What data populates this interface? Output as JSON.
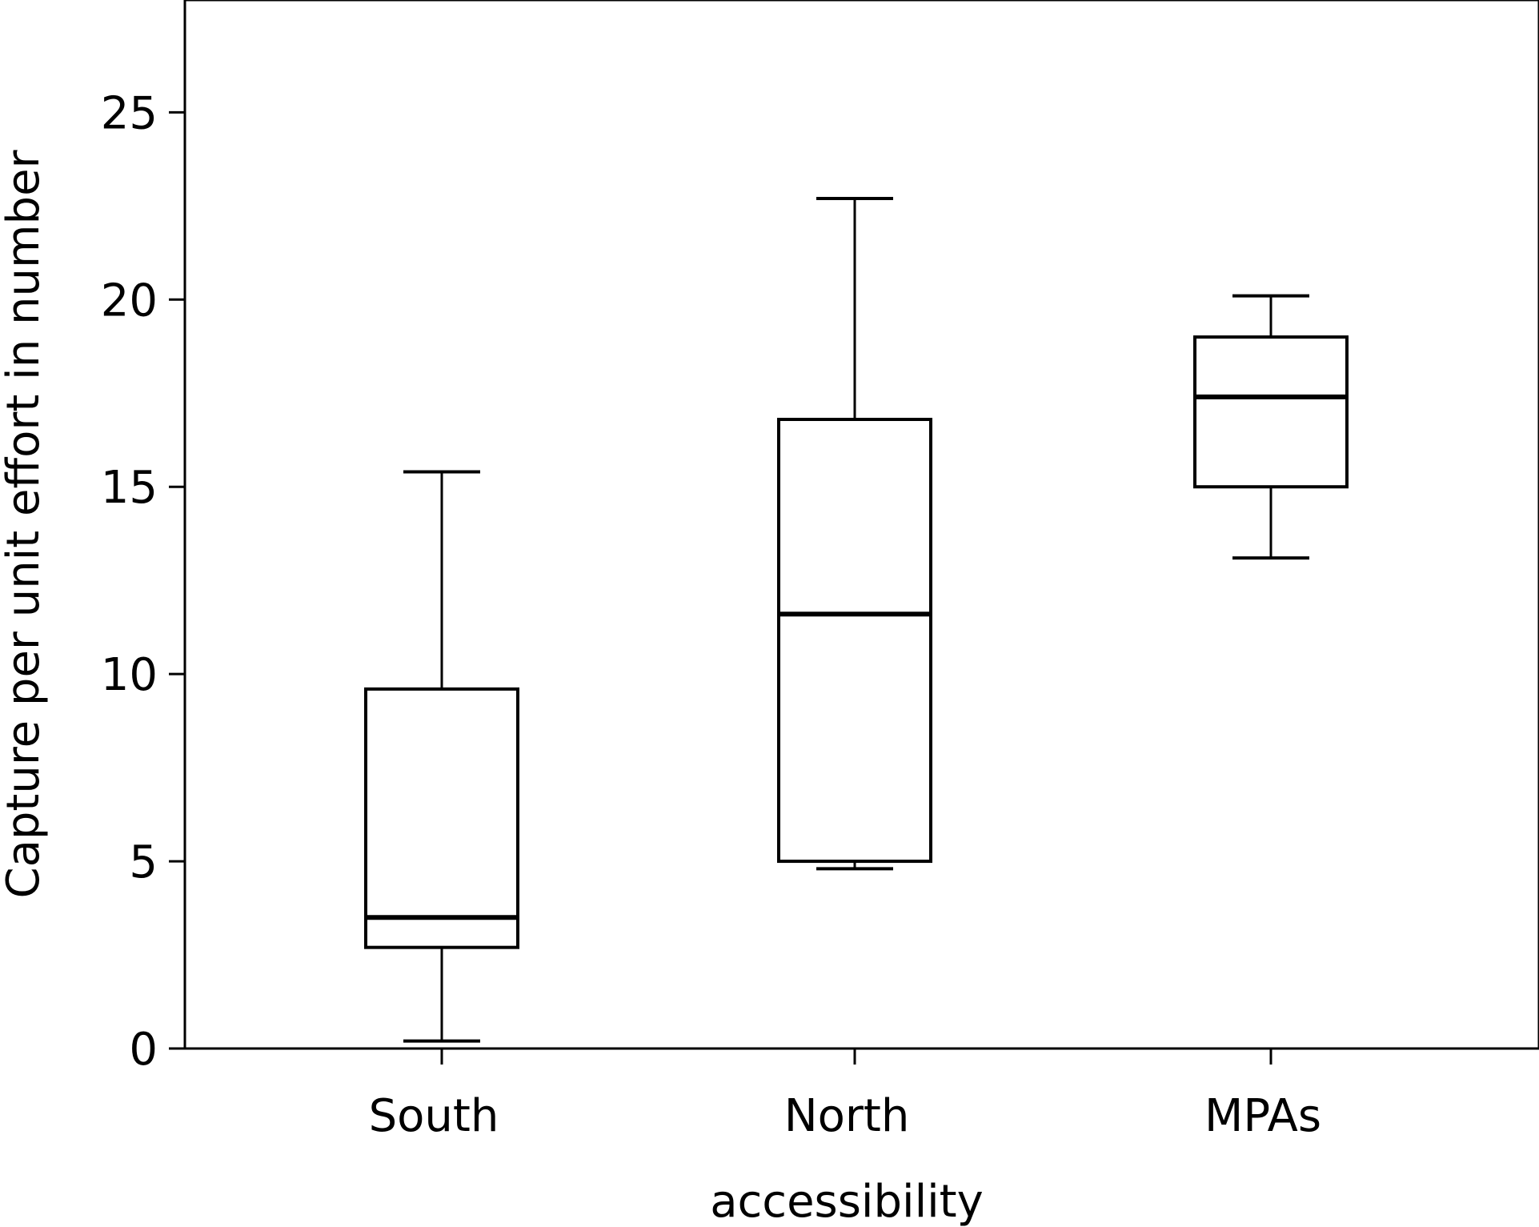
{
  "chart_data": {
    "type": "boxplot",
    "xlabel": "accessibility",
    "ylabel": "Capture per unit effort in number",
    "ylim": [
      0,
      28
    ],
    "yticks": [
      0,
      5,
      10,
      15,
      20,
      25
    ],
    "categories": [
      "South",
      "North",
      "MPAs"
    ],
    "boxes": [
      {
        "category": "South",
        "min": 0.2,
        "q1": 2.7,
        "median": 3.5,
        "q3": 9.6,
        "max": 15.4
      },
      {
        "category": "North",
        "min": 4.8,
        "q1": 5.0,
        "median": 11.6,
        "q3": 16.8,
        "max": 22.7
      },
      {
        "category": "MPAs",
        "min": 13.1,
        "q1": 15.0,
        "median": 17.4,
        "q3": 19.0,
        "max": 20.1
      }
    ],
    "grid": false,
    "colors": {
      "box_fill": "#ffffff",
      "stroke": "#000000"
    }
  }
}
